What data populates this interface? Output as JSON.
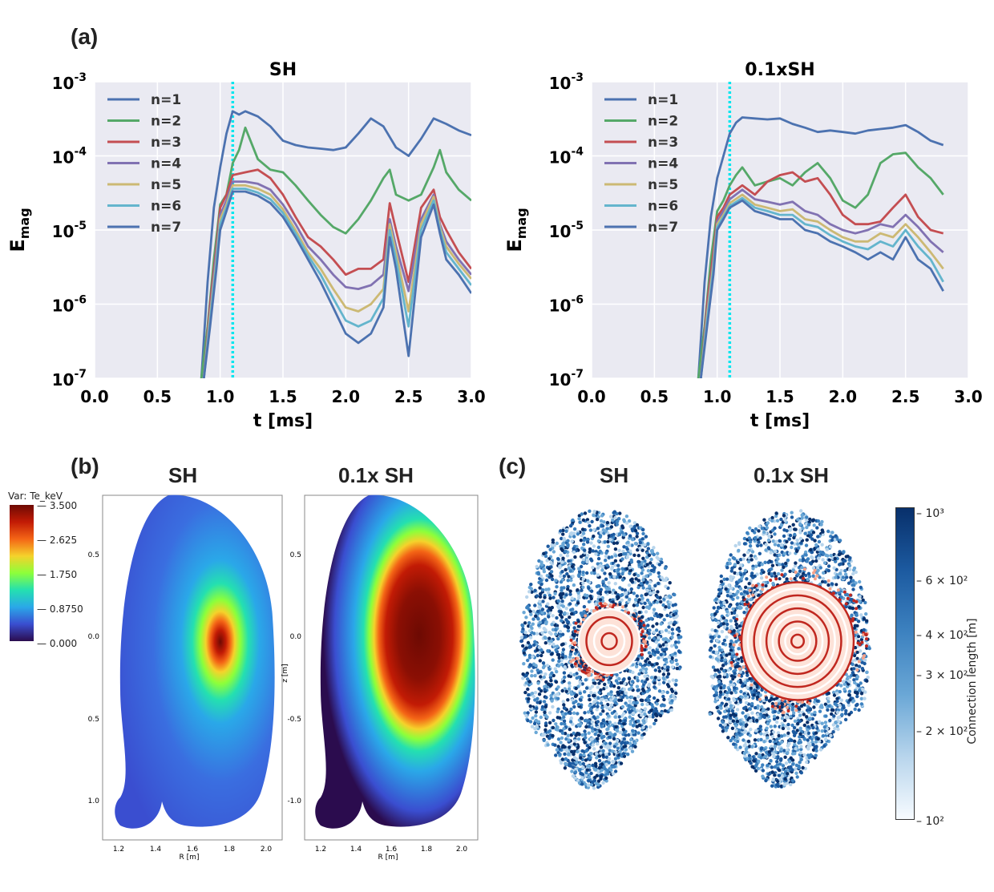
{
  "panels": {
    "a_label": "(a)",
    "b_label": "(b)",
    "c_label": "(c)"
  },
  "panel_b": {
    "title_left": "SH",
    "title_right": "0.1x SH",
    "colorbar_title": "Var: Te_keV",
    "colorbar_ticks": [
      "3.500",
      "2.625",
      "1.750",
      "0.8750",
      "0.000"
    ],
    "colorbar_colors": [
      "#2b0c4e",
      "#3a4ed0",
      "#2aa8e8",
      "#24e0b0",
      "#8dff3a",
      "#f5d22b",
      "#f46516",
      "#c21b05",
      "#6d0a03"
    ],
    "z_ticks": [
      "0.5",
      "0.0",
      "-0.5",
      "-1.0"
    ],
    "r_ticks": [
      "1.2",
      "1.4",
      "1.6",
      "1.8",
      "2.0"
    ],
    "z_label": "z [m]",
    "r_label": "R [m]"
  },
  "panel_c": {
    "title_left": "SH",
    "title_right": "0.1x SH",
    "colorbar_label": "Connection length [m]",
    "colorbar_ticks": [
      "10³",
      "6 × 10²",
      "4 × 10²",
      "3 × 10²",
      "2 × 10²",
      "10²"
    ],
    "scatter_colors": [
      "#08306b",
      "#1c5aa0",
      "#3d82c0",
      "#6aa7d6",
      "#b8d5ec"
    ],
    "core_colors": [
      "#c0271f",
      "#ffffff",
      "#f5a28a"
    ]
  },
  "chart_data": [
    {
      "type": "line",
      "title": "SH",
      "xlabel": "t [ms]",
      "ylabel": "E_mag",
      "ylabel_main": "E",
      "ylabel_sub": "mag",
      "yscale": "log",
      "xlim": [
        0.0,
        3.0
      ],
      "ylim": [
        1e-07,
        0.001
      ],
      "xticks": [
        "0.0",
        "0.5",
        "1.0",
        "1.5",
        "2.0",
        "2.5",
        "3.0"
      ],
      "ytick_base": "10",
      "ytick_exps": [
        "-3",
        "-4",
        "-5",
        "-6",
        "-7"
      ],
      "vline": {
        "x": 1.1,
        "color": "#00e5ee"
      },
      "series": [
        {
          "name": "n=1",
          "color": "#4c72b0",
          "x": [
            0.85,
            0.9,
            0.95,
            1.0,
            1.05,
            1.1,
            1.15,
            1.2,
            1.3,
            1.4,
            1.5,
            1.6,
            1.7,
            1.8,
            1.9,
            2.0,
            2.1,
            2.2,
            2.3,
            2.4,
            2.5,
            2.6,
            2.7,
            2.8,
            2.9,
            3.0
          ],
          "y": [
            1e-07,
            2e-06,
            2e-05,
            7e-05,
            0.0002,
            0.0004,
            0.00036,
            0.0004,
            0.00034,
            0.00025,
            0.00016,
            0.00014,
            0.00013,
            0.000125,
            0.00012,
            0.00013,
            0.0002,
            0.00032,
            0.00025,
            0.00013,
            0.0001,
            0.00017,
            0.00032,
            0.00027,
            0.00022,
            0.00019
          ]
        },
        {
          "name": "n=2",
          "color": "#55a868",
          "x": [
            0.85,
            0.9,
            0.95,
            1.0,
            1.05,
            1.1,
            1.15,
            1.2,
            1.3,
            1.4,
            1.5,
            1.6,
            1.7,
            1.8,
            1.9,
            2.0,
            2.1,
            2.2,
            2.3,
            2.35,
            2.4,
            2.5,
            2.6,
            2.7,
            2.75,
            2.8,
            2.9,
            3.0
          ],
          "y": [
            1e-07,
            5e-07,
            4e-06,
            2.2e-05,
            3e-05,
            8e-05,
            0.00012,
            0.00024,
            9e-05,
            6.5e-05,
            6e-05,
            4e-05,
            2.5e-05,
            1.6e-05,
            1.1e-05,
            9e-06,
            1.4e-05,
            2.5e-05,
            5e-05,
            6.5e-05,
            3e-05,
            2.5e-05,
            3e-05,
            7e-05,
            0.00012,
            6e-05,
            3.5e-05,
            2.5e-05
          ]
        },
        {
          "name": "n=3",
          "color": "#c44e52",
          "x": [
            0.87,
            0.92,
            0.97,
            1.0,
            1.05,
            1.1,
            1.2,
            1.3,
            1.4,
            1.5,
            1.6,
            1.7,
            1.8,
            1.9,
            2.0,
            2.1,
            2.2,
            2.3,
            2.35,
            2.4,
            2.5,
            2.6,
            2.7,
            2.75,
            2.8,
            2.9,
            3.0
          ],
          "y": [
            1e-07,
            1e-06,
            6e-06,
            2e-05,
            3e-05,
            5.5e-05,
            6e-05,
            6.5e-05,
            5e-05,
            3e-05,
            1.5e-05,
            8e-06,
            6e-06,
            4e-06,
            2.5e-06,
            3e-06,
            3e-06,
            4e-06,
            2.3e-05,
            1e-05,
            2e-06,
            2e-05,
            3.5e-05,
            1.5e-05,
            1e-05,
            5e-06,
            3e-06
          ]
        },
        {
          "name": "n=4",
          "color": "#8172b2",
          "x": [
            0.87,
            0.92,
            0.97,
            1.0,
            1.05,
            1.1,
            1.2,
            1.3,
            1.4,
            1.5,
            1.6,
            1.7,
            1.8,
            1.9,
            2.0,
            2.1,
            2.2,
            2.3,
            2.35,
            2.4,
            2.5,
            2.6,
            2.7,
            2.75,
            2.8,
            2.9,
            3.0
          ],
          "y": [
            1e-07,
            8e-07,
            5e-06,
            1.6e-05,
            2.5e-05,
            4.5e-05,
            4.5e-05,
            4.2e-05,
            3.5e-05,
            2.2e-05,
            1.2e-05,
            6e-06,
            4e-06,
            2.5e-06,
            1.7e-06,
            1.6e-06,
            1.8e-06,
            2.5e-06,
            1.4e-05,
            6e-06,
            1.5e-06,
            1.4e-05,
            3e-05,
            1.2e-05,
            7e-06,
            4e-06,
            2.5e-06
          ]
        },
        {
          "name": "n=5",
          "color": "#ccb974",
          "x": [
            0.87,
            0.92,
            0.97,
            1.0,
            1.05,
            1.1,
            1.2,
            1.3,
            1.4,
            1.5,
            1.6,
            1.7,
            1.8,
            1.9,
            2.0,
            2.1,
            2.2,
            2.3,
            2.35,
            2.4,
            2.5,
            2.6,
            2.7,
            2.75,
            2.8,
            2.9,
            3.0
          ],
          "y": [
            1e-07,
            7e-07,
            4e-06,
            1.4e-05,
            2.2e-05,
            4e-05,
            4e-05,
            3.6e-05,
            3e-05,
            1.9e-05,
            1e-05,
            5e-06,
            3e-06,
            1.6e-06,
            9e-07,
            8e-07,
            1e-06,
            1.6e-06,
            1.2e-05,
            5e-06,
            8e-07,
            1.2e-05,
            2.8e-05,
            1.1e-05,
            6e-06,
            3.5e-06,
            2.2e-06
          ]
        },
        {
          "name": "n=6",
          "color": "#64b5cd",
          "x": [
            0.87,
            0.92,
            0.97,
            1.0,
            1.05,
            1.1,
            1.2,
            1.3,
            1.4,
            1.5,
            1.6,
            1.7,
            1.8,
            1.9,
            2.0,
            2.1,
            2.2,
            2.3,
            2.35,
            2.4,
            2.5,
            2.6,
            2.7,
            2.75,
            2.8,
            2.9,
            3.0
          ],
          "y": [
            1e-07,
            6e-07,
            3.5e-06,
            1.2e-05,
            2e-05,
            3.6e-05,
            3.6e-05,
            3.2e-05,
            2.6e-05,
            1.7e-05,
            9e-06,
            4.5e-06,
            2.5e-06,
            1.2e-06,
            6e-07,
            5e-07,
            6e-07,
            1.2e-06,
            1e-05,
            4e-06,
            5e-07,
            1e-05,
            2.5e-05,
            1e-05,
            5e-06,
            3e-06,
            1.8e-06
          ]
        },
        {
          "name": "n=7",
          "color": "#4c72b0",
          "x": [
            0.87,
            0.92,
            0.97,
            1.0,
            1.05,
            1.1,
            1.2,
            1.3,
            1.4,
            1.5,
            1.6,
            1.7,
            1.8,
            1.9,
            2.0,
            2.1,
            2.2,
            2.3,
            2.35,
            2.4,
            2.5,
            2.6,
            2.7,
            2.75,
            2.8,
            2.9,
            3.0
          ],
          "y": [
            1e-07,
            5e-07,
            3e-06,
            1e-05,
            1.8e-05,
            3.3e-05,
            3.3e-05,
            2.9e-05,
            2.3e-05,
            1.5e-05,
            8e-06,
            4e-06,
            2e-06,
            9e-07,
            4e-07,
            3e-07,
            4e-07,
            9e-07,
            8e-06,
            3e-06,
            2e-07,
            8e-06,
            2.2e-05,
            9e-06,
            4e-06,
            2.5e-06,
            1.4e-06
          ]
        }
      ]
    },
    {
      "type": "line",
      "title": "0.1xSH",
      "xlabel": "t [ms]",
      "ylabel": "E_mag",
      "ylabel_main": "E",
      "ylabel_sub": "mag",
      "yscale": "log",
      "xlim": [
        0.0,
        3.0
      ],
      "ylim": [
        1e-07,
        0.001
      ],
      "xticks": [
        "0.0",
        "0.5",
        "1.0",
        "1.5",
        "2.0",
        "2.5",
        "3.0"
      ],
      "ytick_base": "10",
      "ytick_exps": [
        "-3",
        "-4",
        "-5",
        "-6",
        "-7"
      ],
      "vline": {
        "x": 1.1,
        "color": "#00e5ee"
      },
      "series": [
        {
          "name": "n=1",
          "color": "#4c72b0",
          "x": [
            0.85,
            0.9,
            0.95,
            1.0,
            1.05,
            1.1,
            1.15,
            1.2,
            1.3,
            1.4,
            1.5,
            1.6,
            1.7,
            1.8,
            1.9,
            2.0,
            2.1,
            2.2,
            2.3,
            2.4,
            2.5,
            2.6,
            2.7,
            2.8
          ],
          "y": [
            1e-07,
            2e-06,
            1.5e-05,
            5e-05,
            0.0001,
            0.0002,
            0.00028,
            0.00033,
            0.00032,
            0.00031,
            0.00032,
            0.00027,
            0.00024,
            0.00021,
            0.00022,
            0.00021,
            0.0002,
            0.00022,
            0.00023,
            0.00024,
            0.00026,
            0.00021,
            0.00016,
            0.00014
          ]
        },
        {
          "name": "n=2",
          "color": "#55a868",
          "x": [
            0.85,
            0.9,
            0.95,
            1.0,
            1.05,
            1.1,
            1.15,
            1.2,
            1.3,
            1.4,
            1.5,
            1.6,
            1.7,
            1.8,
            1.9,
            2.0,
            2.1,
            2.2,
            2.3,
            2.4,
            2.5,
            2.6,
            2.7,
            2.8
          ],
          "y": [
            1e-07,
            5e-07,
            4e-06,
            1.8e-05,
            2.5e-05,
            4e-05,
            5.5e-05,
            7e-05,
            4e-05,
            4.5e-05,
            5e-05,
            4e-05,
            6e-05,
            8e-05,
            5e-05,
            2.5e-05,
            2e-05,
            3e-05,
            8e-05,
            0.000105,
            0.00011,
            7e-05,
            5e-05,
            3e-05
          ]
        },
        {
          "name": "n=3",
          "color": "#c44e52",
          "x": [
            0.87,
            0.92,
            0.97,
            1.0,
            1.05,
            1.1,
            1.2,
            1.3,
            1.4,
            1.5,
            1.6,
            1.7,
            1.8,
            1.9,
            2.0,
            2.1,
            2.2,
            2.3,
            2.4,
            2.5,
            2.6,
            2.7,
            2.8
          ],
          "y": [
            1e-07,
            1e-06,
            5e-06,
            1.5e-05,
            2e-05,
            3e-05,
            4e-05,
            3e-05,
            4.5e-05,
            5.5e-05,
            6e-05,
            4.5e-05,
            5e-05,
            3e-05,
            1.6e-05,
            1.2e-05,
            1.2e-05,
            1.3e-05,
            2e-05,
            3e-05,
            1.5e-05,
            1e-05,
            9e-06
          ]
        },
        {
          "name": "n=4",
          "color": "#8172b2",
          "x": [
            0.87,
            0.92,
            0.97,
            1.0,
            1.05,
            1.1,
            1.2,
            1.3,
            1.4,
            1.5,
            1.6,
            1.7,
            1.8,
            1.9,
            2.0,
            2.1,
            2.2,
            2.3,
            2.4,
            2.5,
            2.6,
            2.7,
            2.8
          ],
          "y": [
            1e-07,
            8e-07,
            4e-06,
            1.3e-05,
            1.8e-05,
            2.6e-05,
            3.5e-05,
            2.6e-05,
            2.4e-05,
            2.2e-05,
            2.4e-05,
            1.8e-05,
            1.6e-05,
            1.2e-05,
            1e-05,
            9e-06,
            1e-05,
            1.2e-05,
            1.1e-05,
            1.6e-05,
            1.1e-05,
            7e-06,
            5e-06
          ]
        },
        {
          "name": "n=5",
          "color": "#ccb974",
          "x": [
            0.87,
            0.92,
            0.97,
            1.0,
            1.05,
            1.1,
            1.2,
            1.3,
            1.4,
            1.5,
            1.6,
            1.7,
            1.8,
            1.9,
            2.0,
            2.1,
            2.2,
            2.3,
            2.4,
            2.5,
            2.6,
            2.7,
            2.8
          ],
          "y": [
            1e-07,
            7e-07,
            3.5e-06,
            1.2e-05,
            1.6e-05,
            2.3e-05,
            3e-05,
            2.2e-05,
            2e-05,
            1.8e-05,
            1.9e-05,
            1.4e-05,
            1.3e-05,
            1e-05,
            8e-06,
            7e-06,
            7e-06,
            9e-06,
            8e-06,
            1.2e-05,
            8e-06,
            5e-06,
            3e-06
          ]
        },
        {
          "name": "n=6",
          "color": "#64b5cd",
          "x": [
            0.87,
            0.92,
            0.97,
            1.0,
            1.05,
            1.1,
            1.2,
            1.3,
            1.4,
            1.5,
            1.6,
            1.7,
            1.8,
            1.9,
            2.0,
            2.1,
            2.2,
            2.3,
            2.4,
            2.5,
            2.6,
            2.7,
            2.8
          ],
          "y": [
            1e-07,
            6e-07,
            3e-06,
            1.1e-05,
            1.5e-05,
            2.1e-05,
            2.7e-05,
            2e-05,
            1.8e-05,
            1.6e-05,
            1.6e-05,
            1.2e-05,
            1.1e-05,
            8.5e-06,
            7e-06,
            6e-06,
            5.5e-06,
            7e-06,
            6e-06,
            1e-05,
            6e-06,
            4e-06,
            2e-06
          ]
        },
        {
          "name": "n=7",
          "color": "#4c72b0",
          "x": [
            0.87,
            0.92,
            0.97,
            1.0,
            1.05,
            1.1,
            1.2,
            1.3,
            1.4,
            1.5,
            1.6,
            1.7,
            1.8,
            1.9,
            2.0,
            2.1,
            2.2,
            2.3,
            2.4,
            2.5,
            2.6,
            2.7,
            2.8
          ],
          "y": [
            1e-07,
            5e-07,
            2.5e-06,
            1e-05,
            1.4e-05,
            2e-05,
            2.5e-05,
            1.8e-05,
            1.6e-05,
            1.4e-05,
            1.4e-05,
            1e-05,
            9e-06,
            7e-06,
            6e-06,
            5e-06,
            4e-06,
            5e-06,
            4e-06,
            8e-06,
            4e-06,
            3e-06,
            1.5e-06
          ]
        }
      ]
    }
  ]
}
